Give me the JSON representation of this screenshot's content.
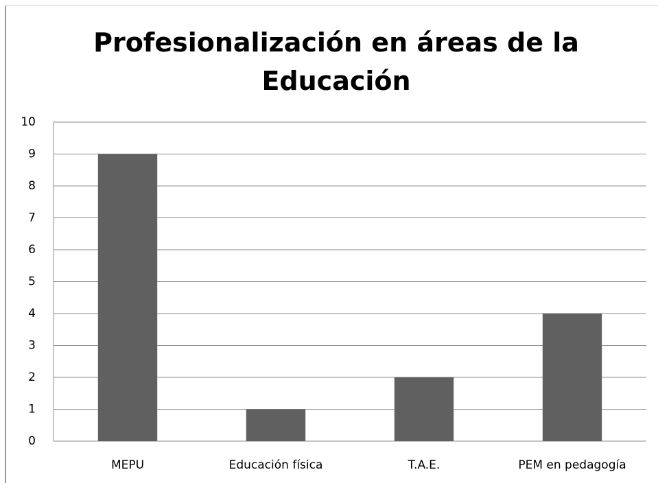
{
  "chart_data": {
    "type": "bar",
    "title": "Profesionalización en áreas de la Educación",
    "categories": [
      "MEPU",
      "Educación física",
      "T.A.E.",
      "PEM en pedagogía"
    ],
    "values": [
      9,
      1,
      2,
      4
    ],
    "color": "#606060",
    "ylim": [
      0,
      10
    ],
    "yticks": [
      0,
      1,
      2,
      3,
      4,
      5,
      6,
      7,
      8,
      9,
      10
    ],
    "grid": true
  }
}
